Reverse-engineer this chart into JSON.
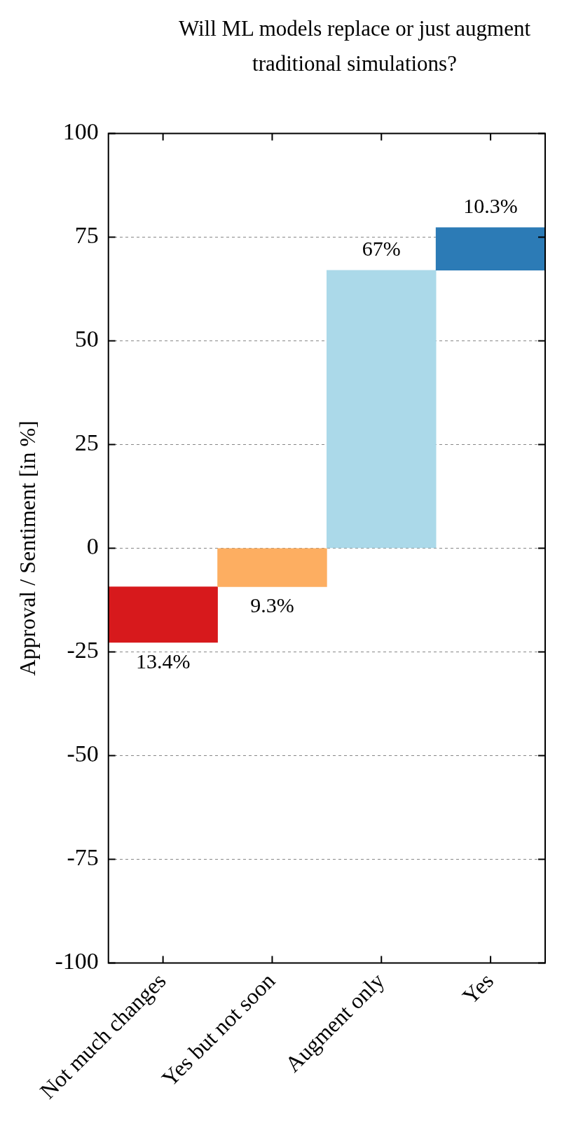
{
  "chart_data": {
    "type": "bar",
    "title": "Will ML models replace or just augment traditional simulations?",
    "ylabel": "Approval / Sentiment [in %]",
    "categories": [
      "Not much changes",
      "Yes but not soon",
      "Augment only",
      "Yes"
    ],
    "values": [
      13.4,
      9.3,
      67,
      10.3
    ],
    "base": [
      -22.7,
      -9.3,
      0,
      67
    ],
    "colors": [
      "#d7191c",
      "#fdae61",
      "#abd9e9",
      "#2c7bb6"
    ],
    "value_labels": [
      "13.4%",
      "9.3%",
      "67%",
      "10.3%"
    ],
    "ylim": [
      -100,
      100
    ],
    "yticks": [
      -100,
      -75,
      -50,
      -25,
      0,
      25,
      50,
      75,
      100
    ],
    "grid": "y",
    "legend": false
  }
}
